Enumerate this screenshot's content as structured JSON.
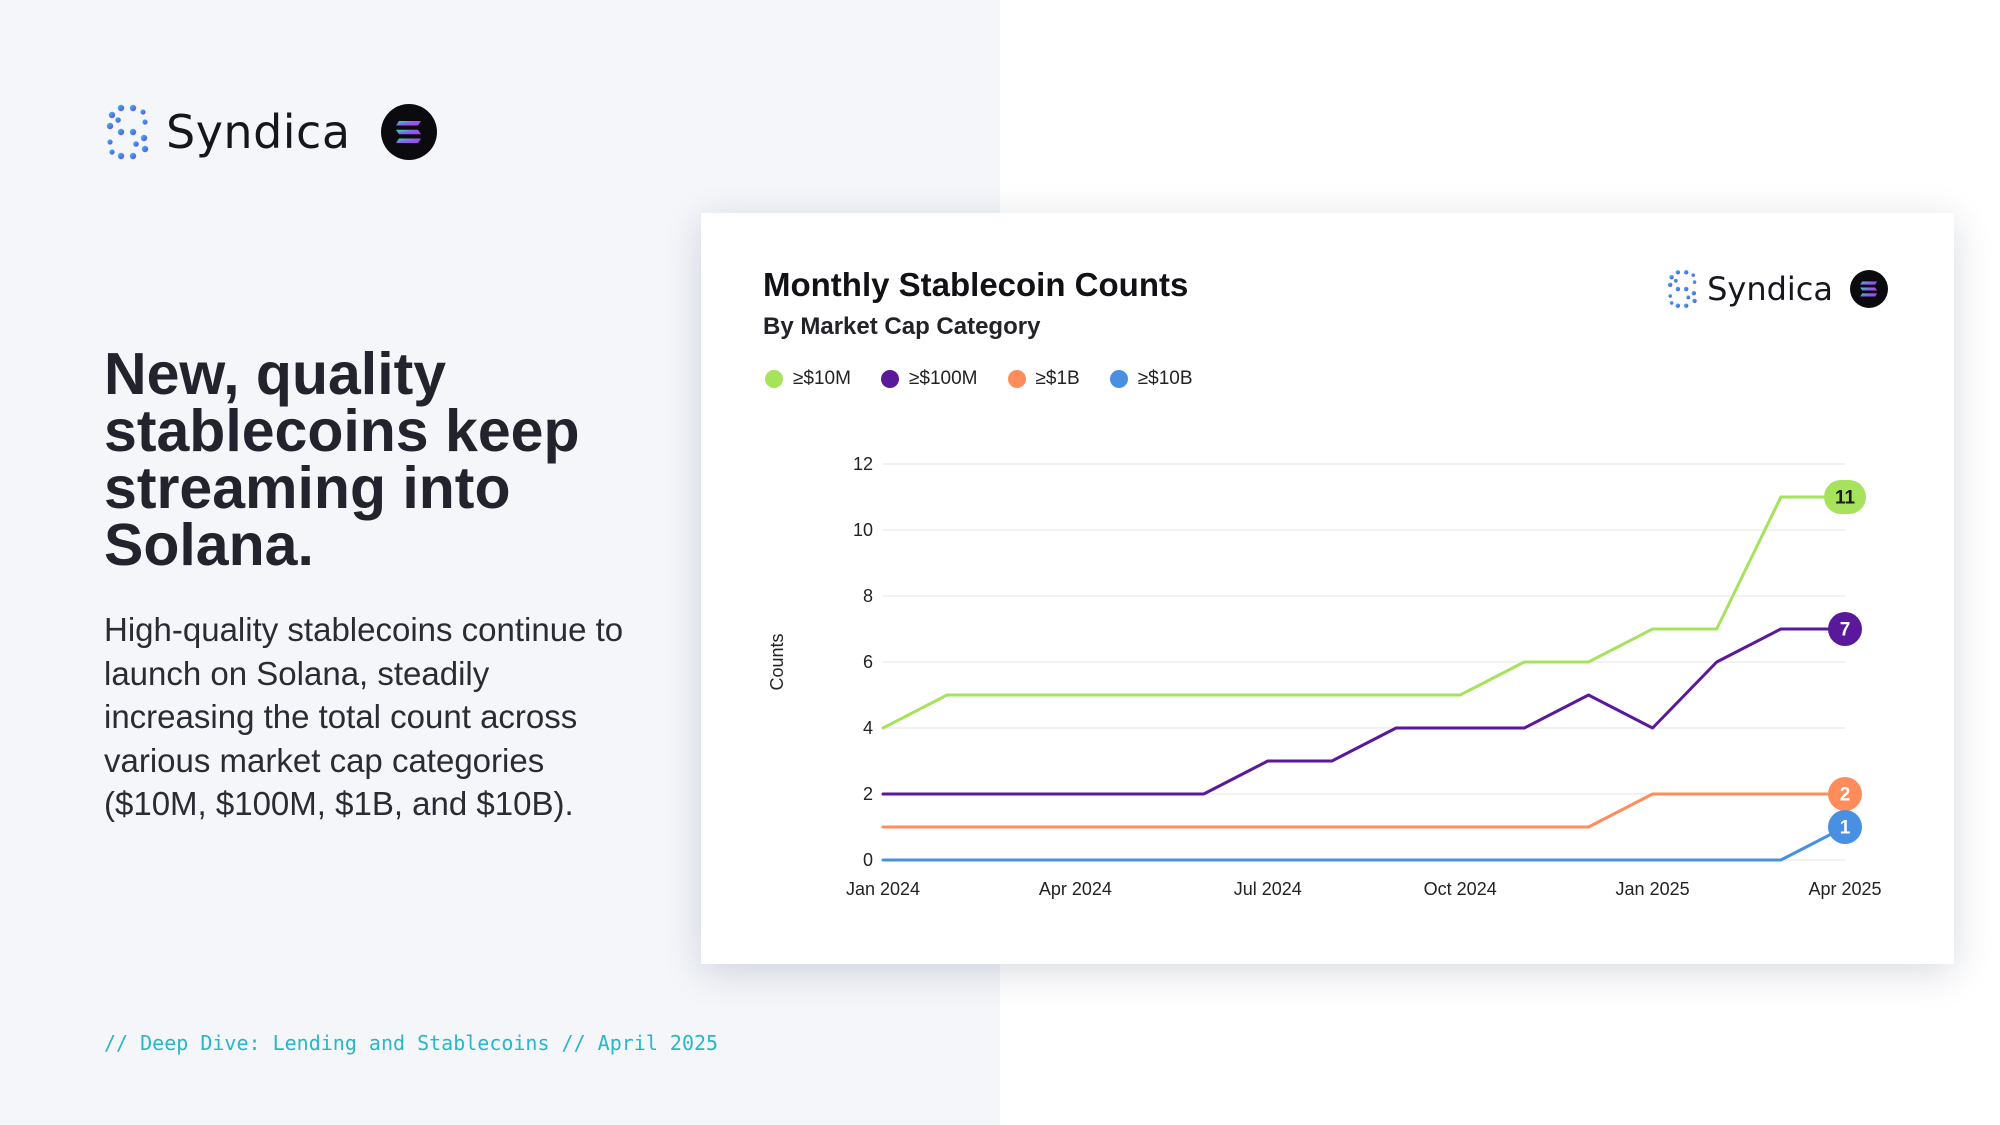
{
  "brand": {
    "name": "Syndica",
    "logo_icon": "syndica-logo-icon",
    "partner_icon": "solana-logo-icon"
  },
  "headline": "New, quality stablecoins keep streaming into Solana.",
  "body": "High-quality stablecoins continue to launch on Solana, steadily increasing the total count across various market cap categories ($10M, $100M, $1B, and $10B).",
  "footer": "// Deep Dive: Lending and Stablecoins // April 2025",
  "colors": {
    "green": "#a6e25c",
    "purple": "#5a189a",
    "orange": "#ff8c5a",
    "blue": "#4a90e2",
    "footer": "#29b6c8"
  },
  "chart_data": {
    "type": "line",
    "title": "Monthly Stablecoin Counts",
    "subtitle": "By Market Cap Category",
    "xlabel": "",
    "ylabel": "Counts",
    "ylim": [
      0,
      12
    ],
    "yticks": [
      0,
      2,
      4,
      6,
      8,
      10,
      12
    ],
    "xtick_labels": [
      "Jan 2024",
      "Apr 2024",
      "Jul 2024",
      "Oct 2024",
      "Jan 2025",
      "Apr 2025"
    ],
    "xtick_index": [
      0,
      3,
      6,
      9,
      12,
      15
    ],
    "x": [
      "2024-01",
      "2024-02",
      "2024-03",
      "2024-04",
      "2024-05",
      "2024-06",
      "2024-07",
      "2024-08",
      "2024-09",
      "2024-10",
      "2024-11",
      "2024-12",
      "2025-01",
      "2025-02",
      "2025-03",
      "2025-04"
    ],
    "series": [
      {
        "name": "≥$10M",
        "color": "#a6e25c",
        "label_text": "#1a1a1a",
        "end_label": "11",
        "values": [
          4,
          5,
          5,
          5,
          5,
          5,
          5,
          5,
          5,
          5,
          6,
          6,
          7,
          7,
          11,
          11
        ]
      },
      {
        "name": "≥$100M",
        "color": "#5a189a",
        "label_text": "#ffffff",
        "end_label": "7",
        "values": [
          2,
          2,
          2,
          2,
          2,
          2,
          3,
          3,
          4,
          4,
          4,
          5,
          4,
          6,
          7,
          7
        ]
      },
      {
        "name": "≥$1B",
        "color": "#ff8c5a",
        "label_text": "#ffffff",
        "end_label": "2",
        "values": [
          1,
          1,
          1,
          1,
          1,
          1,
          1,
          1,
          1,
          1,
          1,
          1,
          2,
          2,
          2,
          2
        ]
      },
      {
        "name": "≥$10B",
        "color": "#4a90e2",
        "label_text": "#ffffff",
        "end_label": "1",
        "values": [
          0,
          0,
          0,
          0,
          0,
          0,
          0,
          0,
          0,
          0,
          0,
          0,
          0,
          0,
          0,
          1
        ]
      }
    ]
  }
}
